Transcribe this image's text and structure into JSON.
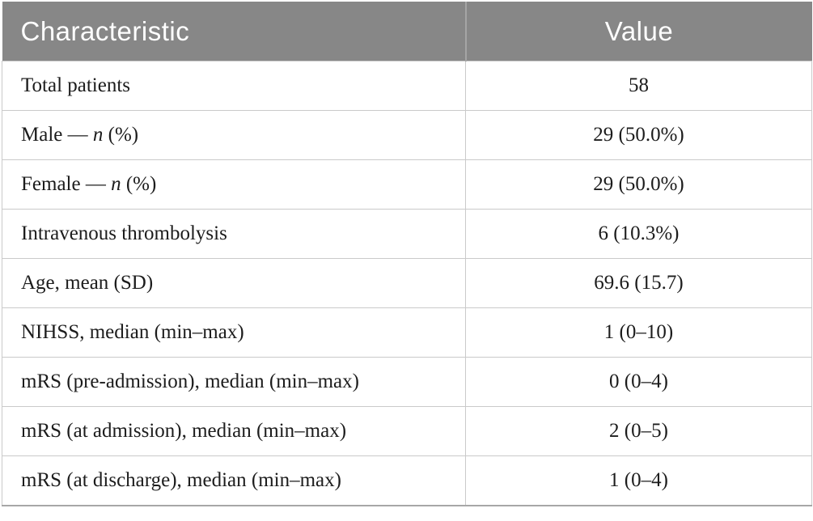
{
  "colors": {
    "header_bg": "#878787",
    "header_text": "#ffffff",
    "body_text": "#1c1c1c",
    "grid_border": "#cacaca",
    "bottom_border": "#a7a7a7"
  },
  "table": {
    "columns": [
      {
        "label": "Characteristic"
      },
      {
        "label": "Value"
      }
    ],
    "rows": [
      {
        "label": "Total patients",
        "value": "58"
      },
      {
        "label_pre": "Male — ",
        "label_it": "n",
        "label_post": " (%)",
        "value": "29 (50.0%)"
      },
      {
        "label_pre": "Female — ",
        "label_it": "n",
        "label_post": " (%)",
        "value": "29 (50.0%)"
      },
      {
        "label": "Intravenous thrombolysis",
        "value": "6 (10.3%)"
      },
      {
        "label": "Age, mean (SD)",
        "value": "69.6 (15.7)"
      },
      {
        "label": "NIHSS, median (min–max)",
        "value": "1 (0–10)"
      },
      {
        "label": "mRS (pre-admission), median (min–max)",
        "value": "0 (0–4)"
      },
      {
        "label": "mRS (at admission), median (min–max)",
        "value": "2 (0–5)"
      },
      {
        "label": "mRS (at discharge), median (min–max)",
        "value": "1 (0–4)"
      }
    ]
  }
}
